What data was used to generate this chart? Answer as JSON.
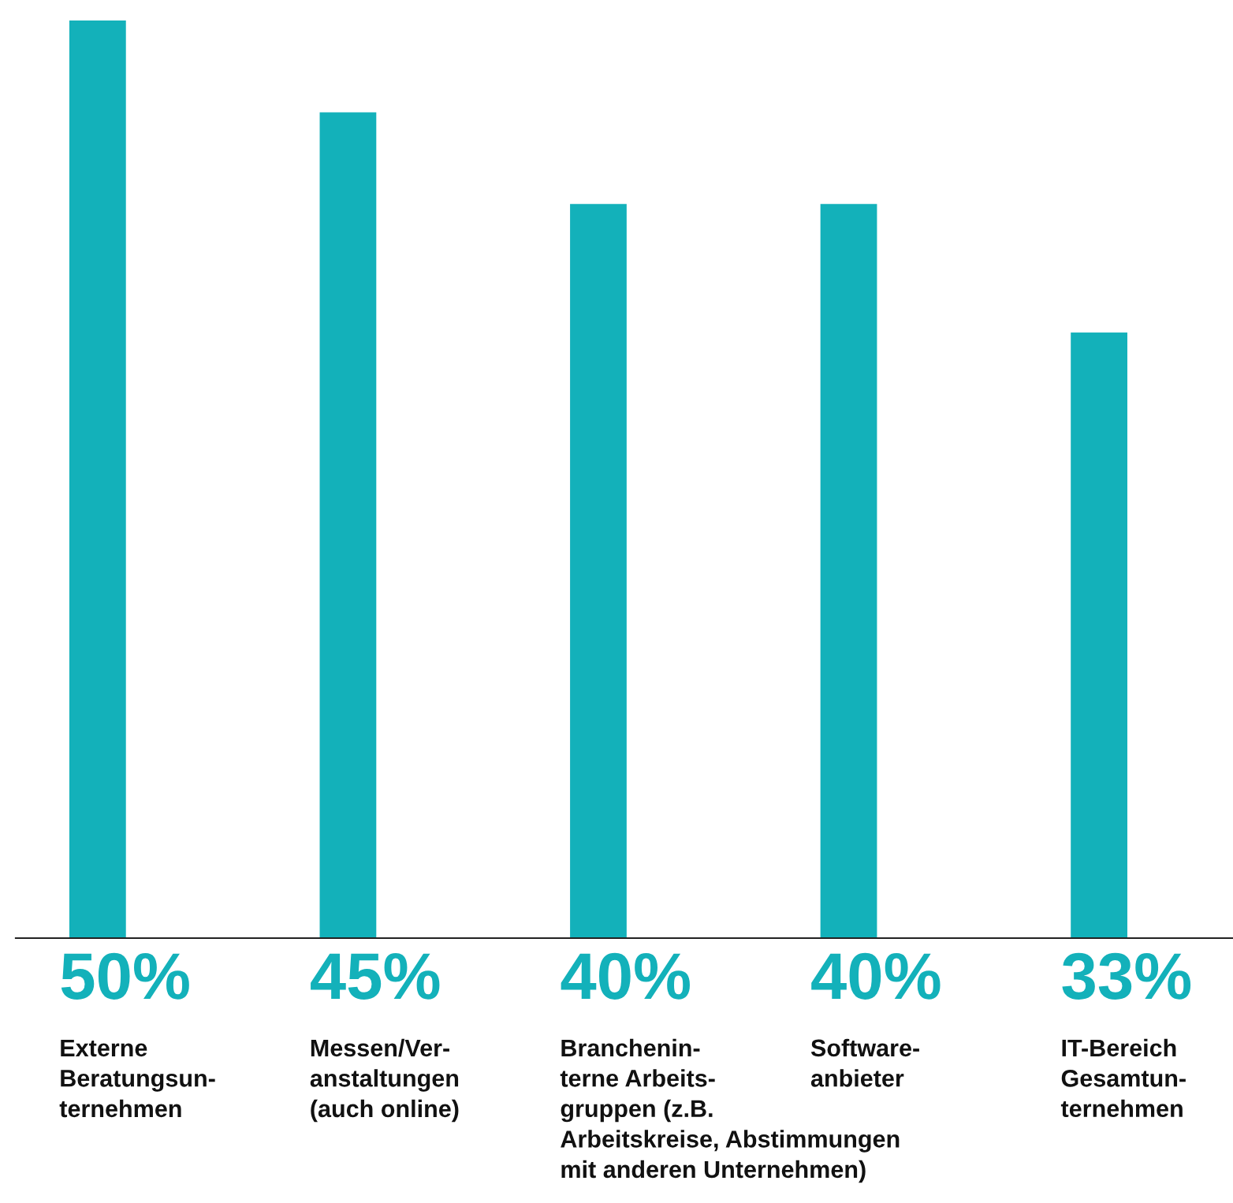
{
  "chart_data": {
    "type": "bar",
    "categories": [
      "Externe\nBeratungsun-\nternehmen",
      "Messen/Ver-\nanstaltungen\n(auch online)",
      "Branchenin-\nterne Arbeits-\ngruppen (z.B.\nArbeitskreise, Abstimmungen\nmit anderen Unternehmen)",
      "Software-\nanbieter",
      "IT-Bereich\nGesamtun-\nternehmen"
    ],
    "values": [
      50,
      45,
      40,
      40,
      33
    ],
    "value_labels": [
      "50%",
      "45%",
      "40%",
      "40%",
      "33%"
    ],
    "colors": [
      "#13b1ba",
      "#13b1ba",
      "#13b1ba",
      "#13b1ba",
      "#13b1ba"
    ],
    "legend": false
  }
}
